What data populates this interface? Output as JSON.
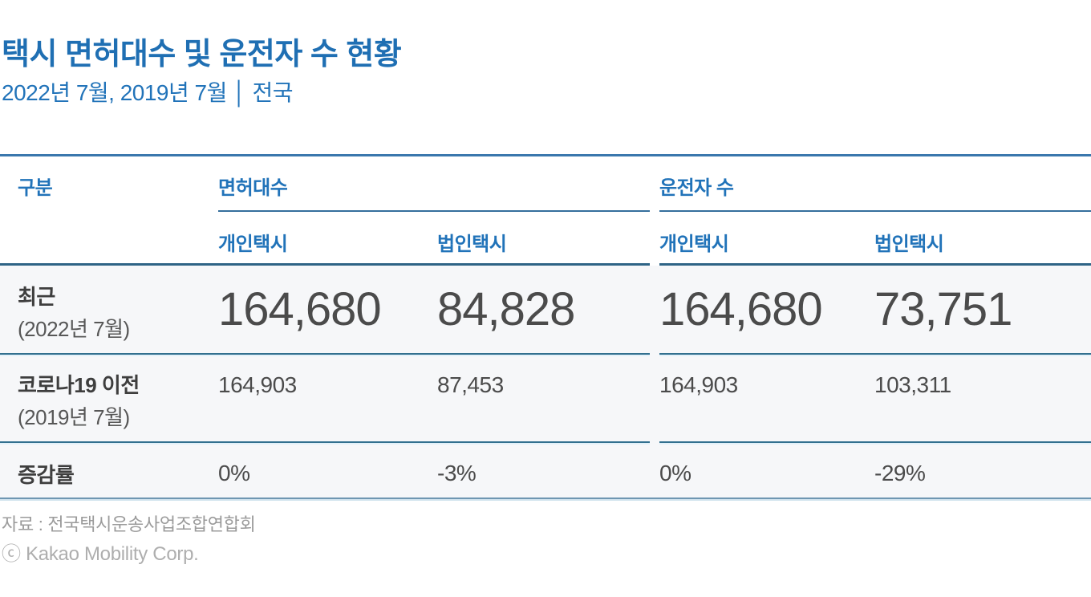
{
  "page": {
    "title": "택시 면허대수 및 운전자 수 현황",
    "subtitle": "2022년 7월, 2019년 7월 │ 전국"
  },
  "table": {
    "corner_label": "구분",
    "groups": [
      {
        "label": "면허대수",
        "subcolumns": [
          "개인택시",
          "법인택시"
        ]
      },
      {
        "label": "운전자 수",
        "subcolumns": [
          "개인택시",
          "법인택시"
        ]
      }
    ],
    "rows": [
      {
        "label": "최근",
        "sublabel": "(2022년 7월)",
        "values": [
          "164,680",
          "84,828",
          "164,680",
          "73,751"
        ],
        "emphasis": true
      },
      {
        "label": "코로나19 이전",
        "sublabel": "(2019년 7월)",
        "values": [
          "164,903",
          "87,453",
          "164,903",
          "103,311"
        ],
        "emphasis": false
      },
      {
        "label": "증감률",
        "sublabel": "",
        "values": [
          "0%",
          "-3%",
          "0%",
          "-29%"
        ],
        "emphasis": false
      }
    ]
  },
  "footer": {
    "source": "자료 : 전국택시운송사업조합연합회",
    "copyright": "ⓒ Kakao Mobility Corp."
  },
  "colors": {
    "accent_blue": "#2173b9",
    "title_blue": "#1f6fb3",
    "top_border": "#3a77ad",
    "header_border": "#2e6486",
    "row_separator": "#32708f",
    "bottom_border": "#6f97b2",
    "body_background": "#f6f7f9",
    "value_text": "#4b4b4b",
    "footer_gray": "#9b9b9b"
  },
  "chart_data": {
    "type": "table",
    "title": "택시 면허대수 및 운전자 수 현황",
    "subtitle": "2022년 7월, 2019년 7월 │ 전국",
    "column_groups": [
      "면허대수",
      "운전자 수"
    ],
    "columns": [
      "면허대수 개인택시",
      "면허대수 법인택시",
      "운전자 수 개인택시",
      "운전자 수 법인택시"
    ],
    "rows": [
      {
        "label": "최근 (2022년 7월)",
        "values": [
          164680,
          84828,
          164680,
          73751
        ]
      },
      {
        "label": "코로나19 이전 (2019년 7월)",
        "values": [
          164903,
          87453,
          164903,
          103311
        ]
      },
      {
        "label": "증감률",
        "values": [
          "0%",
          "-3%",
          "0%",
          "-29%"
        ]
      }
    ],
    "source": "전국택시운송사업조합연합회"
  }
}
